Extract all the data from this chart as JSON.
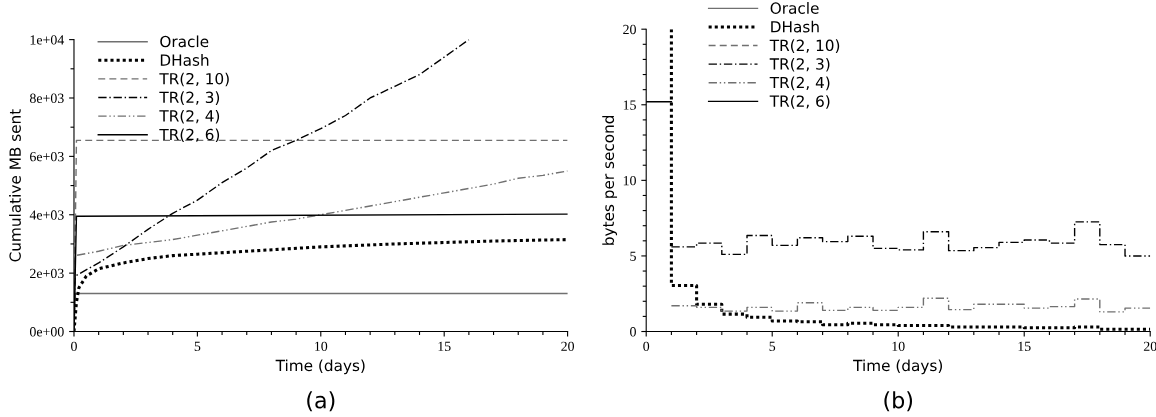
{
  "chart_data": [
    {
      "type": "line",
      "xlabel": "Time (days)",
      "ylabel": "Cumulative MB sent",
      "annotations": [
        "(a)"
      ],
      "legend": "top left",
      "grid": false,
      "xlim": [
        0,
        20
      ],
      "xticks": [
        0,
        {
          "value": 1,
          "label": null
        },
        {
          "value": 2,
          "label": null
        },
        {
          "value": 3,
          "label": null
        },
        {
          "value": 4,
          "label": null
        },
        5,
        {
          "value": 6,
          "label": null
        },
        {
          "value": 7,
          "label": null
        },
        {
          "value": 8,
          "label": null
        },
        {
          "value": 9,
          "label": null
        },
        10,
        {
          "value": 11,
          "label": null
        },
        {
          "value": 12,
          "label": null
        },
        {
          "value": 13,
          "label": null
        },
        {
          "value": 14,
          "label": null
        },
        15,
        {
          "value": 16,
          "label": null
        },
        {
          "value": 17,
          "label": null
        },
        {
          "value": 18,
          "label": null
        },
        {
          "value": 19,
          "label": null
        },
        20
      ],
      "ylim": [
        0,
        10000
      ],
      "yticks": [
        {
          "value": 0,
          "label": "0e+00"
        },
        {
          "value": 1000,
          "label": null
        },
        {
          "value": 2000,
          "label": "2e+03"
        },
        {
          "value": 3000,
          "label": null
        },
        {
          "value": 4000,
          "label": "4e+03"
        },
        {
          "value": 5000,
          "label": null
        },
        {
          "value": 6000,
          "label": "6e+03"
        },
        {
          "value": 7000,
          "label": null
        },
        {
          "value": 8000,
          "label": "8e+03"
        },
        {
          "value": 9000,
          "label": null
        },
        {
          "value": 10000,
          "label": "1e+04"
        }
      ],
      "series": [
        {
          "name": "Oracle",
          "color": "#707070",
          "line_style": "solid",
          "x": [
            0,
            0.05,
            20
          ],
          "values": [
            0,
            1300,
            1300
          ]
        },
        {
          "name": "DHash",
          "color": "#000000",
          "line_style": "dotted",
          "x": [
            0,
            0.1,
            0.2,
            0.5,
            1,
            2,
            3,
            4,
            5,
            7,
            10,
            13,
            15,
            17,
            20
          ],
          "values": [
            0,
            1000,
            1500,
            1900,
            2150,
            2350,
            2500,
            2600,
            2650,
            2750,
            2900,
            3000,
            3050,
            3100,
            3150
          ]
        },
        {
          "name": "TR(2, 10)",
          "color": "#707070",
          "line_style": "dashed",
          "x": [
            0,
            0.1,
            20
          ],
          "values": [
            0,
            6550,
            6550
          ]
        },
        {
          "name": "TR(2, 3)",
          "color": "#000000",
          "line_style": "dashdot",
          "x": [
            0,
            0.05,
            1,
            2,
            3,
            4,
            5,
            6,
            7,
            8,
            9,
            10,
            11,
            12,
            13,
            14,
            15,
            16
          ],
          "values": [
            0,
            1900,
            2350,
            2900,
            3500,
            4050,
            4500,
            5100,
            5600,
            6200,
            6550,
            6950,
            7400,
            8000,
            8400,
            8800,
            9400,
            10000
          ]
        },
        {
          "name": "TR(2, 4)",
          "color": "#707070",
          "line_style": "dashdotdot",
          "x": [
            0,
            0.05,
            1,
            2,
            3,
            4,
            5,
            6,
            7,
            8,
            9,
            10,
            11,
            12,
            13,
            14,
            15,
            16,
            17,
            18,
            19,
            20
          ],
          "values": [
            0,
            2600,
            2750,
            2950,
            3050,
            3150,
            3300,
            3450,
            3600,
            3750,
            3850,
            4000,
            4150,
            4300,
            4450,
            4600,
            4750,
            4900,
            5050,
            5250,
            5350,
            5500
          ]
        },
        {
          "name": "TR(2, 6)",
          "color": "#000000",
          "line_style": "solid",
          "x": [
            0,
            0.1,
            20
          ],
          "values": [
            0,
            3950,
            4020
          ]
        }
      ]
    },
    {
      "type": "step",
      "xlabel": "Time (days)",
      "ylabel": "bytes per second",
      "annotations": [
        "(b)"
      ],
      "legend": "top left",
      "grid": false,
      "xlim": [
        0,
        20
      ],
      "xticks": [
        0,
        {
          "value": 1,
          "label": null
        },
        {
          "value": 2,
          "label": null
        },
        {
          "value": 3,
          "label": null
        },
        {
          "value": 4,
          "label": null
        },
        5,
        {
          "value": 6,
          "label": null
        },
        {
          "value": 7,
          "label": null
        },
        {
          "value": 8,
          "label": null
        },
        {
          "value": 9,
          "label": null
        },
        10,
        {
          "value": 11,
          "label": null
        },
        {
          "value": 12,
          "label": null
        },
        {
          "value": 13,
          "label": null
        },
        {
          "value": 14,
          "label": null
        },
        15,
        {
          "value": 16,
          "label": null
        },
        {
          "value": 17,
          "label": null
        },
        {
          "value": 18,
          "label": null
        },
        {
          "value": 19,
          "label": null
        },
        20
      ],
      "ylim": [
        0,
        20
      ],
      "yticks": [
        0,
        {
          "value": 1,
          "label": null
        },
        {
          "value": 2,
          "label": null
        },
        {
          "value": 3,
          "label": null
        },
        {
          "value": 4,
          "label": null
        },
        5,
        {
          "value": 6,
          "label": null
        },
        {
          "value": 7,
          "label": null
        },
        {
          "value": 8,
          "label": null
        },
        {
          "value": 9,
          "label": null
        },
        10,
        {
          "value": 11,
          "label": null
        },
        {
          "value": 12,
          "label": null
        },
        {
          "value": 13,
          "label": null
        },
        {
          "value": 14,
          "label": null
        },
        15,
        {
          "value": 16,
          "label": null
        },
        {
          "value": 17,
          "label": null
        },
        {
          "value": 18,
          "label": null
        },
        {
          "value": 19,
          "label": null
        },
        20
      ],
      "series": [
        {
          "name": "Oracle",
          "color": "#707070",
          "line_style": "solid"
        },
        {
          "name": "DHash",
          "color": "#000000",
          "line_style": "dotted",
          "x": [
            1,
            1,
            2,
            3,
            4,
            5,
            6,
            7,
            8,
            9,
            10,
            11,
            12,
            13,
            14,
            15,
            16,
            17,
            18,
            19,
            20
          ],
          "values": [
            20,
            3.05,
            1.8,
            1.15,
            0.95,
            0.7,
            0.65,
            0.45,
            0.55,
            0.45,
            0.4,
            0.4,
            0.3,
            0.3,
            0.3,
            0.25,
            0.25,
            0.3,
            0.15,
            0.15,
            0.15
          ]
        },
        {
          "name": "TR(2, 10)",
          "color": "#707070",
          "line_style": "dashed"
        },
        {
          "name": "TR(2, 3)",
          "color": "#000000",
          "line_style": "dashdot",
          "x": [
            1,
            2,
            3,
            4,
            5,
            6,
            7,
            8,
            9,
            10,
            11,
            12,
            13,
            14,
            15,
            16,
            17,
            18,
            19,
            20
          ],
          "values": [
            5.6,
            5.85,
            5.1,
            6.35,
            5.7,
            6.2,
            5.95,
            6.3,
            5.5,
            5.4,
            6.6,
            5.35,
            5.55,
            5.9,
            6.05,
            5.85,
            7.25,
            5.75,
            5.0,
            5.0
          ]
        },
        {
          "name": "TR(2, 4)",
          "color": "#707070",
          "line_style": "dashdotdot",
          "x": [
            1,
            2,
            3,
            4,
            5,
            6,
            7,
            8,
            9,
            10,
            11,
            12,
            13,
            14,
            15,
            16,
            17,
            18,
            19,
            20
          ],
          "values": [
            1.7,
            1.6,
            1.35,
            1.6,
            1.35,
            1.9,
            1.4,
            1.6,
            1.4,
            1.6,
            2.2,
            1.45,
            1.8,
            1.8,
            1.55,
            1.65,
            2.15,
            1.3,
            1.55,
            1.55
          ]
        },
        {
          "name": "TR(2, 6)",
          "color": "#000000",
          "line_style": "solid",
          "x": [
            0,
            1
          ],
          "values": [
            15.2,
            15.2
          ]
        }
      ]
    }
  ]
}
